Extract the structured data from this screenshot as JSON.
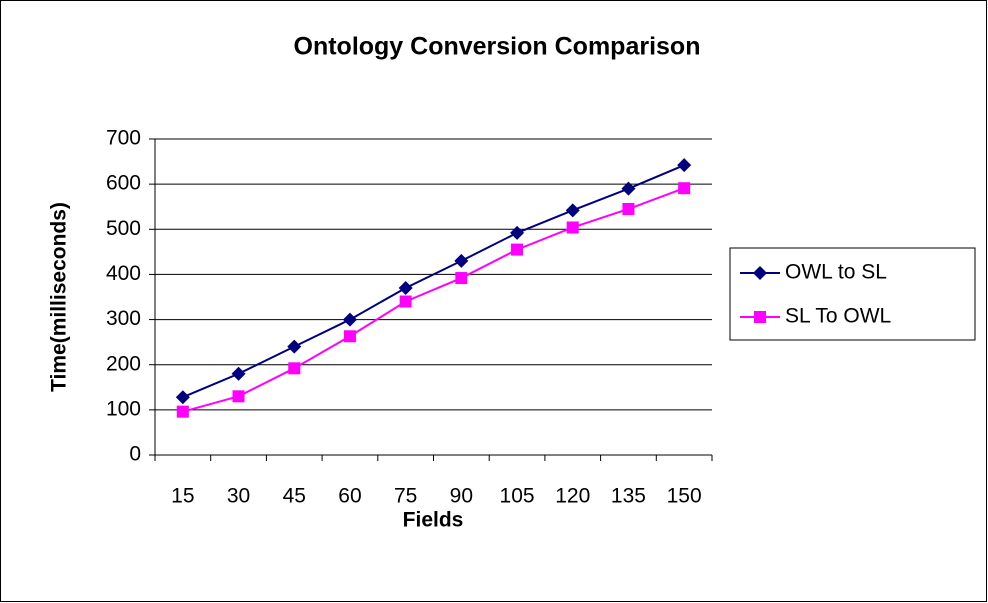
{
  "chart_data": {
    "type": "line",
    "title": "Ontology Conversion Comparison",
    "x_label": "Fields",
    "y_label": "Time(milliseconds)",
    "categories": [
      15,
      30,
      45,
      60,
      75,
      90,
      105,
      120,
      135,
      150
    ],
    "series": [
      {
        "name": "OWL to SL",
        "color": "#000080",
        "marker": "diamond",
        "values": [
          128,
          180,
          240,
          300,
          370,
          430,
          492,
          542,
          590,
          642
        ]
      },
      {
        "name": "SL To OWL",
        "color": "#ff00ff",
        "marker": "square",
        "values": [
          96,
          130,
          192,
          263,
          340,
          392,
          455,
          504,
          545,
          591
        ]
      }
    ],
    "ylim": [
      0,
      700
    ],
    "yticks": [
      0,
      100,
      200,
      300,
      400,
      500,
      600,
      700
    ],
    "grid": true,
    "legend": "right"
  }
}
